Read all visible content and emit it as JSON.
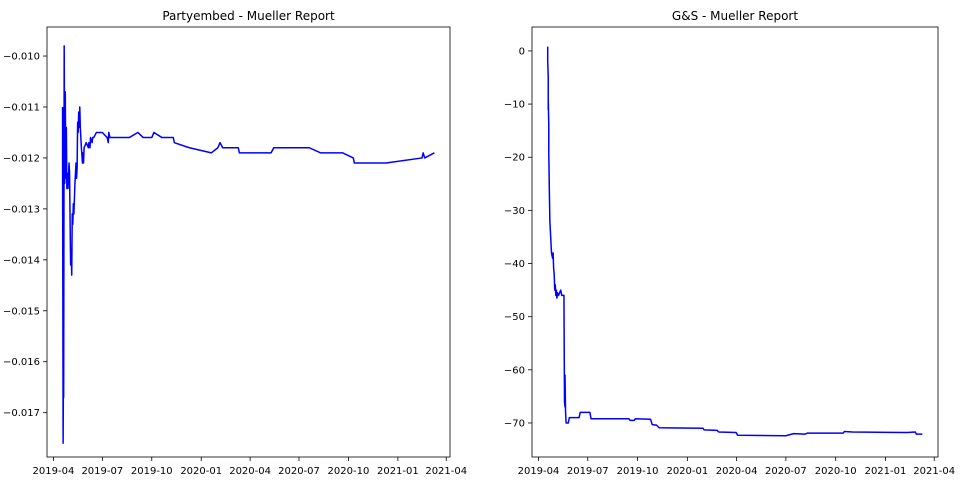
{
  "colors": {
    "line": "#0000ff",
    "axes": "#000000",
    "background": "#ffffff"
  },
  "chart_data": [
    {
      "type": "line",
      "title": "Partyembed - Mueller Report",
      "xlabel": "",
      "ylabel": "",
      "grid": false,
      "xlim": [
        "2019-03-20",
        "2021-04-08"
      ],
      "ylim": [
        -0.01787,
        -0.00943
      ],
      "x_ticks": [
        "2019-04-01",
        "2019-07-01",
        "2019-10-01",
        "2020-01-01",
        "2020-04-01",
        "2020-07-01",
        "2020-10-01",
        "2021-01-01",
        "2021-04-01"
      ],
      "x_tick_labels": [
        "2019-04",
        "2019-07",
        "2019-10",
        "2020-01",
        "2020-04",
        "2020-07",
        "2020-10",
        "2021-01",
        "2021-04"
      ],
      "y_ticks": [
        -0.017,
        -0.016,
        -0.015,
        -0.014,
        -0.013,
        -0.012,
        -0.011,
        -0.01
      ],
      "y_tick_labels": [
        "−0.017",
        "−0.016",
        "−0.015",
        "−0.014",
        "−0.013",
        "−0.012",
        "−0.011",
        "−0.010"
      ],
      "series": [
        {
          "color": "#0000ff",
          "points": [
            [
              "2019-04-18",
              -0.011
            ],
            [
              "2019-04-18",
              -0.012
            ],
            [
              "2019-04-19",
              -0.0176
            ],
            [
              "2019-04-20",
              -0.0152
            ],
            [
              "2019-04-20",
              -0.0167
            ],
            [
              "2019-04-21",
              -0.0098
            ],
            [
              "2019-04-22",
              -0.0125
            ],
            [
              "2019-04-23",
              -0.0107
            ],
            [
              "2019-04-24",
              -0.0124
            ],
            [
              "2019-04-25",
              -0.0114
            ],
            [
              "2019-04-26",
              -0.0126
            ],
            [
              "2019-04-27",
              -0.0123
            ],
            [
              "2019-04-28",
              -0.0126
            ],
            [
              "2019-04-29",
              -0.0124
            ],
            [
              "2019-04-30",
              -0.0121
            ],
            [
              "2019-05-01",
              -0.0123
            ],
            [
              "2019-05-02",
              -0.0133
            ],
            [
              "2019-05-03",
              -0.0141
            ],
            [
              "2019-05-04",
              -0.0138
            ],
            [
              "2019-05-05",
              -0.0143
            ],
            [
              "2019-05-06",
              -0.0131
            ],
            [
              "2019-05-07",
              -0.0133
            ],
            [
              "2019-05-08",
              -0.0129
            ],
            [
              "2019-05-09",
              -0.0131
            ],
            [
              "2019-05-11",
              -0.0125
            ],
            [
              "2019-05-13",
              -0.0121
            ],
            [
              "2019-05-14",
              -0.0124
            ],
            [
              "2019-05-15",
              -0.0122
            ],
            [
              "2019-05-16",
              -0.0113
            ],
            [
              "2019-05-17",
              -0.0115
            ],
            [
              "2019-05-18",
              -0.0111
            ],
            [
              "2019-05-19",
              -0.0114
            ],
            [
              "2019-05-20",
              -0.011
            ],
            [
              "2019-05-21",
              -0.0114
            ],
            [
              "2019-05-23",
              -0.0118
            ],
            [
              "2019-05-25",
              -0.0121
            ],
            [
              "2019-05-26",
              -0.0119
            ],
            [
              "2019-05-27",
              -0.0121
            ],
            [
              "2019-05-28",
              -0.0118
            ],
            [
              "2019-06-01",
              -0.0117
            ],
            [
              "2019-06-05",
              -0.0118
            ],
            [
              "2019-06-06",
              -0.0117
            ],
            [
              "2019-06-08",
              -0.0118
            ],
            [
              "2019-06-09",
              -0.0116
            ],
            [
              "2019-06-12",
              -0.0117
            ],
            [
              "2019-06-13",
              -0.0116
            ],
            [
              "2019-06-15",
              -0.0116
            ],
            [
              "2019-06-20",
              -0.0115
            ],
            [
              "2019-07-01",
              -0.0115
            ],
            [
              "2019-07-10",
              -0.0116
            ],
            [
              "2019-07-12",
              -0.0117
            ],
            [
              "2019-07-13",
              -0.0115
            ],
            [
              "2019-07-15",
              -0.0116
            ],
            [
              "2019-08-01",
              -0.0116
            ],
            [
              "2019-08-20",
              -0.0116
            ],
            [
              "2019-09-05",
              -0.0115
            ],
            [
              "2019-09-15",
              -0.0116
            ],
            [
              "2019-10-01",
              -0.0116
            ],
            [
              "2019-10-05",
              -0.0115
            ],
            [
              "2019-10-20",
              -0.0116
            ],
            [
              "2019-11-10",
              -0.0116
            ],
            [
              "2019-11-12",
              -0.0117
            ],
            [
              "2019-12-10",
              -0.0118
            ],
            [
              "2020-01-20",
              -0.0119
            ],
            [
              "2020-02-01",
              -0.0118
            ],
            [
              "2020-02-05",
              -0.0117
            ],
            [
              "2020-02-10",
              -0.0118
            ],
            [
              "2020-03-10",
              -0.0118
            ],
            [
              "2020-03-12",
              -0.0119
            ],
            [
              "2020-05-10",
              -0.0119
            ],
            [
              "2020-05-15",
              -0.0118
            ],
            [
              "2020-06-25",
              -0.0118
            ],
            [
              "2020-07-01",
              -0.0118
            ],
            [
              "2020-07-10",
              -0.0118
            ],
            [
              "2020-07-20",
              -0.0118
            ],
            [
              "2020-08-10",
              -0.0119
            ],
            [
              "2020-09-20",
              -0.0119
            ],
            [
              "2020-10-10",
              -0.012
            ],
            [
              "2020-10-12",
              -0.0121
            ],
            [
              "2020-12-10",
              -0.0121
            ],
            [
              "2021-02-15",
              -0.012
            ],
            [
              "2021-02-17",
              -0.0119
            ],
            [
              "2021-02-20",
              -0.012
            ],
            [
              "2021-03-10",
              -0.0119
            ]
          ]
        }
      ]
    },
    {
      "type": "line",
      "title": "G&S - Mueller Report",
      "xlabel": "",
      "ylabel": "",
      "grid": false,
      "xlim": [
        "2019-03-20",
        "2021-04-08"
      ],
      "ylim": [
        -76.4,
        4.5
      ],
      "x_ticks": [
        "2019-04-01",
        "2019-07-01",
        "2019-10-01",
        "2020-01-01",
        "2020-04-01",
        "2020-07-01",
        "2020-10-01",
        "2021-01-01",
        "2021-04-01"
      ],
      "x_tick_labels": [
        "2019-04",
        "2019-07",
        "2019-10",
        "2020-01",
        "2020-04",
        "2020-07",
        "2020-10",
        "2021-01",
        "2021-04"
      ],
      "y_ticks": [
        0,
        -10,
        -20,
        -30,
        -40,
        -50,
        -60,
        -70
      ],
      "y_tick_labels": [
        "0",
        "−10",
        "−20",
        "−30",
        "−40",
        "−50",
        "−60",
        "−70"
      ],
      "series": [
        {
          "color": "#0000ff",
          "points": [
            [
              "2019-04-18",
              0.8
            ],
            [
              "2019-04-18",
              -2
            ],
            [
              "2019-04-19",
              -5
            ],
            [
              "2019-04-19",
              -11
            ],
            [
              "2019-04-19",
              -9
            ],
            [
              "2019-04-20",
              -14
            ],
            [
              "2019-04-20",
              -19
            ],
            [
              "2019-04-21",
              -26
            ],
            [
              "2019-04-22",
              -32
            ],
            [
              "2019-04-23",
              -34
            ],
            [
              "2019-04-24",
              -36
            ],
            [
              "2019-04-25",
              -38
            ],
            [
              "2019-04-26",
              -38.5
            ],
            [
              "2019-04-27",
              -39
            ],
            [
              "2019-04-28",
              -38
            ],
            [
              "2019-04-29",
              -41
            ],
            [
              "2019-04-30",
              -42
            ],
            [
              "2019-05-01",
              -45
            ],
            [
              "2019-05-02",
              -44
            ],
            [
              "2019-05-03",
              -46
            ],
            [
              "2019-05-04",
              -45
            ],
            [
              "2019-05-05",
              -46.5
            ],
            [
              "2019-05-06",
              -45.5
            ],
            [
              "2019-05-08",
              -46
            ],
            [
              "2019-05-10",
              -45.5
            ],
            [
              "2019-05-12",
              -45
            ],
            [
              "2019-05-14",
              -46
            ],
            [
              "2019-05-18",
              -46
            ],
            [
              "2019-05-19",
              -66
            ],
            [
              "2019-05-20",
              -67
            ],
            [
              "2019-05-20",
              -61
            ],
            [
              "2019-05-21",
              -68
            ],
            [
              "2019-05-22",
              -70
            ],
            [
              "2019-05-26",
              -70
            ],
            [
              "2019-05-28",
              -69
            ],
            [
              "2019-06-05",
              -69
            ],
            [
              "2019-06-15",
              -69
            ],
            [
              "2019-06-17",
              -68
            ],
            [
              "2019-07-05",
              -68
            ],
            [
              "2019-07-07",
              -69.2
            ],
            [
              "2019-09-15",
              -69.2
            ],
            [
              "2019-09-17",
              -69.5
            ],
            [
              "2019-09-25",
              -69.5
            ],
            [
              "2019-09-27",
              -69.2
            ],
            [
              "2019-10-25",
              -69.3
            ],
            [
              "2019-10-28",
              -70.3
            ],
            [
              "2019-11-05",
              -70.4
            ],
            [
              "2019-11-10",
              -70.9
            ],
            [
              "2020-01-30",
              -71
            ],
            [
              "2020-02-01",
              -71.3
            ],
            [
              "2020-02-25",
              -71.4
            ],
            [
              "2020-02-28",
              -71.7
            ],
            [
              "2020-03-31",
              -71.8
            ],
            [
              "2020-04-03",
              -72.3
            ],
            [
              "2020-07-01",
              -72.4
            ],
            [
              "2020-07-15",
              -72
            ],
            [
              "2020-08-05",
              -72.1
            ],
            [
              "2020-08-10",
              -71.9
            ],
            [
              "2020-10-15",
              -71.9
            ],
            [
              "2020-10-17",
              -71.6
            ],
            [
              "2020-11-01",
              -71.7
            ],
            [
              "2021-02-10",
              -71.8
            ],
            [
              "2021-02-25",
              -71.7
            ],
            [
              "2021-02-27",
              -72.1
            ],
            [
              "2021-03-10",
              -72.1
            ]
          ]
        }
      ]
    }
  ]
}
